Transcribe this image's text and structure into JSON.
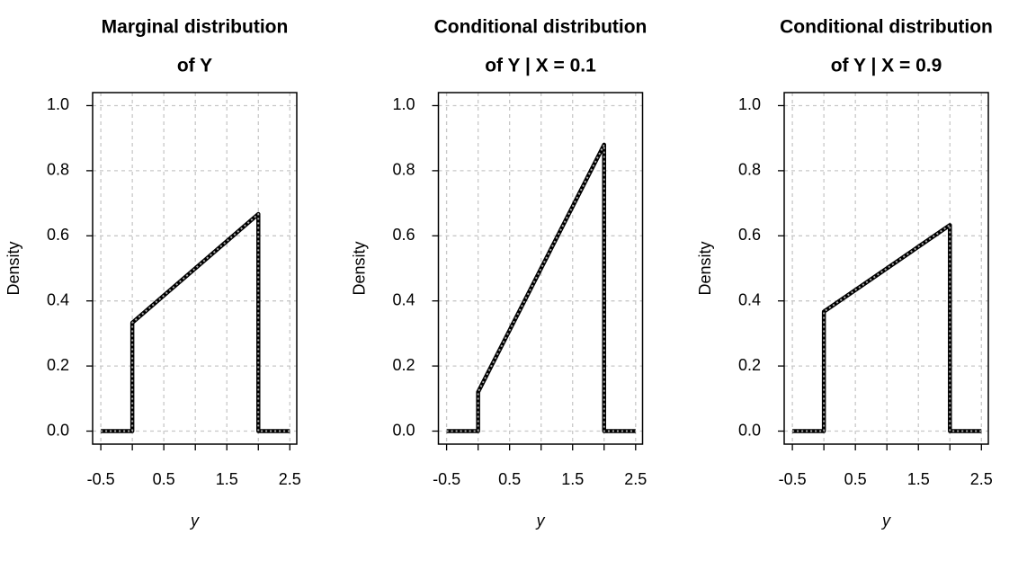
{
  "chart_data": [
    {
      "type": "line",
      "title": [
        "Marginal distribution",
        "of Y"
      ],
      "xlabel": "y",
      "ylabel": "Density",
      "x": [
        -0.5,
        0,
        0,
        2,
        2,
        2.5
      ],
      "series": [
        {
          "color": "#000000",
          "style": "solid",
          "values": [
            0,
            0,
            0.333,
            0.667,
            0,
            0
          ]
        },
        {
          "color": "#aaaaaa",
          "style": "dotted",
          "values": [
            0,
            0,
            0.333,
            0.667,
            0,
            0
          ]
        }
      ],
      "xlim": [
        -0.63,
        2.61
      ],
      "ylim": [
        -0.04,
        1.04
      ],
      "xticks": [
        -0.5,
        0.5,
        1.5,
        2.5
      ],
      "xticks_minor": [
        0,
        1,
        2
      ],
      "yticks": [
        {
          "value": 0,
          "label": "0.0"
        },
        {
          "value": 0.2,
          "label": "0.2"
        },
        {
          "value": 0.4,
          "label": "0.4"
        },
        {
          "value": 0.6,
          "label": "0.6"
        },
        {
          "value": 0.8,
          "label": "0.8"
        },
        {
          "value": 1,
          "label": "1.0"
        }
      ],
      "grid": true
    },
    {
      "type": "line",
      "title": [
        "Conditional distribution",
        "of Y | X = 0.1"
      ],
      "xlabel": "y",
      "ylabel": "Density",
      "x": [
        -0.5,
        0,
        0,
        2,
        2,
        2.5
      ],
      "series": [
        {
          "color": "#000000",
          "style": "solid",
          "values": [
            0,
            0,
            0.12,
            0.88,
            0,
            0
          ]
        },
        {
          "color": "#aaaaaa",
          "style": "dotted",
          "values": [
            0,
            0,
            0.12,
            0.88,
            0,
            0
          ]
        }
      ],
      "xlim": [
        -0.63,
        2.61
      ],
      "ylim": [
        -0.04,
        1.04
      ],
      "xticks": [
        -0.5,
        0.5,
        1.5,
        2.5
      ],
      "xticks_minor": [
        0,
        1,
        2
      ],
      "yticks": [
        {
          "value": 0,
          "label": "0.0"
        },
        {
          "value": 0.2,
          "label": "0.2"
        },
        {
          "value": 0.4,
          "label": "0.4"
        },
        {
          "value": 0.6,
          "label": "0.6"
        },
        {
          "value": 0.8,
          "label": "0.8"
        },
        {
          "value": 1,
          "label": "1.0"
        }
      ],
      "grid": true
    },
    {
      "type": "line",
      "title": [
        "Conditional distribution",
        "of Y | X = 0.9"
      ],
      "xlabel": "y",
      "ylabel": "Density",
      "x": [
        -0.5,
        0,
        0,
        2,
        2,
        2.5
      ],
      "series": [
        {
          "color": "#000000",
          "style": "solid",
          "values": [
            0,
            0,
            0.367,
            0.633,
            0,
            0
          ]
        },
        {
          "color": "#aaaaaa",
          "style": "dotted",
          "values": [
            0,
            0,
            0.367,
            0.633,
            0,
            0
          ]
        }
      ],
      "xlim": [
        -0.63,
        2.61
      ],
      "ylim": [
        -0.04,
        1.04
      ],
      "xticks": [
        -0.5,
        0.5,
        1.5,
        2.5
      ],
      "xticks_minor": [
        0,
        1,
        2
      ],
      "yticks": [
        {
          "value": 0,
          "label": "0.0"
        },
        {
          "value": 0.2,
          "label": "0.2"
        },
        {
          "value": 0.4,
          "label": "0.4"
        },
        {
          "value": 0.6,
          "label": "0.6"
        },
        {
          "value": 0.8,
          "label": "0.8"
        },
        {
          "value": 1,
          "label": "1.0"
        }
      ],
      "grid": true
    }
  ]
}
